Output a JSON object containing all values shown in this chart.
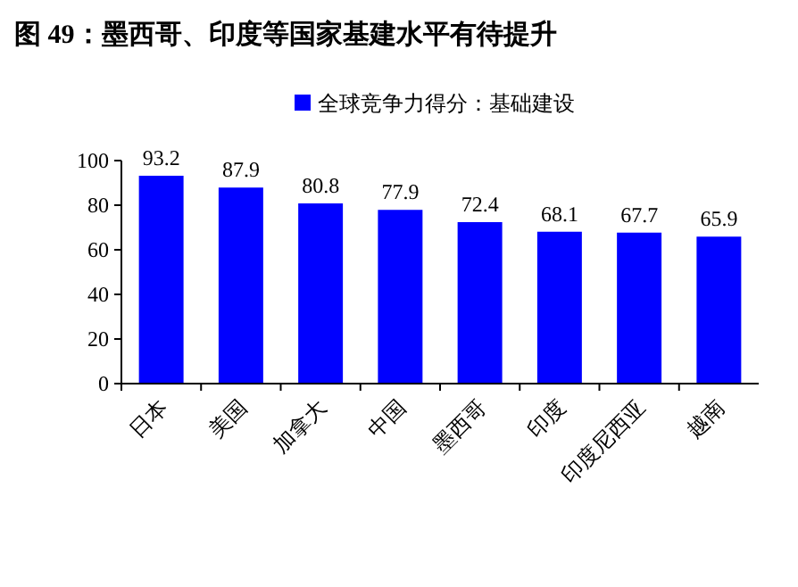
{
  "chart_data": {
    "type": "bar",
    "title": "图 49：墨西哥、印度等国家基建水平有待提升",
    "categories": [
      "日本",
      "美国",
      "加拿大",
      "中国",
      "墨西哥",
      "印度",
      "印度尼西亚",
      "越南"
    ],
    "series": [
      {
        "name": "全球竞争力得分：基础建设",
        "color": "#0000ff",
        "values": [
          93.2,
          87.9,
          80.8,
          77.9,
          72.4,
          68.1,
          67.7,
          65.9
        ]
      }
    ],
    "ylim": [
      0,
      100
    ],
    "yticks": [
      0,
      20,
      40,
      60,
      80,
      100
    ],
    "grid": false,
    "legend": "top",
    "data_labels": true
  }
}
